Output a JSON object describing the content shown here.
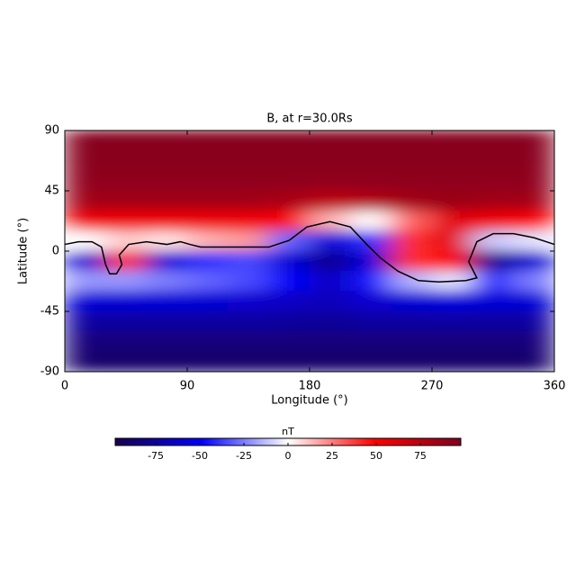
{
  "chart_data": {
    "type": "heatmap",
    "title": "B, at r=30.0Rs",
    "x_label": "Longitude (°)",
    "y_label": "Latitude (°)",
    "xlim": [
      0,
      360
    ],
    "ylim": [
      -90,
      90
    ],
    "xticks": [
      0,
      90,
      180,
      270,
      360
    ],
    "yticks": [
      -90,
      -45,
      0,
      45,
      90
    ],
    "x": [
      15,
      45,
      75,
      105,
      135,
      165,
      195,
      225,
      255,
      285,
      315,
      345
    ],
    "y": [
      82.5,
      67.5,
      52.5,
      37.5,
      22.5,
      7.5,
      -7.5,
      -22.5,
      -37.5,
      -52.5,
      -67.5,
      -82.5
    ],
    "z": [
      [
        95,
        95,
        95,
        95,
        95,
        95,
        95,
        95,
        95,
        95,
        95,
        95
      ],
      [
        94,
        94,
        94,
        94,
        94,
        94,
        94,
        94,
        94,
        94,
        94,
        94
      ],
      [
        92,
        92,
        92,
        92,
        92,
        92,
        92,
        92,
        92,
        92,
        92,
        92
      ],
      [
        85,
        85,
        85,
        85,
        85,
        82,
        75,
        78,
        85,
        88,
        85,
        85
      ],
      [
        55,
        55,
        55,
        55,
        55,
        50,
        15,
        0,
        30,
        60,
        55,
        50
      ],
      [
        0,
        10,
        5,
        15,
        20,
        -30,
        -60,
        -40,
        40,
        60,
        -10,
        -5
      ],
      [
        -60,
        40,
        -60,
        -40,
        -35,
        -60,
        -80,
        -60,
        40,
        50,
        -80,
        -60
      ],
      [
        -20,
        -20,
        -25,
        -30,
        -35,
        -50,
        -65,
        -45,
        -15,
        -5,
        -40,
        -25
      ],
      [
        -60,
        -60,
        -60,
        -60,
        -62,
        -65,
        -68,
        -62,
        -60,
        -58,
        -60,
        -60
      ],
      [
        -75,
        -75,
        -75,
        -75,
        -75,
        -76,
        -77,
        -75,
        -75,
        -75,
        -75,
        -75
      ],
      [
        -85,
        -85,
        -85,
        -85,
        -85,
        -85,
        -85,
        -85,
        -85,
        -85,
        -85,
        -85
      ],
      [
        -90,
        -90,
        -90,
        -90,
        -90,
        -90,
        -90,
        -90,
        -90,
        -90,
        -90,
        -90
      ]
    ],
    "colormap": [
      "#1a004d",
      "#0000ff",
      "#ffffff",
      "#ff0000",
      "#7f0020"
    ],
    "clim": [
      -98,
      98
    ],
    "colorbar_label": "nT",
    "colorbar_ticks": [
      -75,
      -50,
      -25,
      0,
      25,
      50,
      75
    ],
    "contour": {
      "color": "#000000",
      "x": [
        0,
        10,
        20,
        27,
        30,
        33,
        38,
        42,
        40,
        47,
        60,
        75,
        85,
        92,
        100,
        120,
        150,
        165,
        178,
        195,
        210,
        222,
        232,
        245,
        260,
        275,
        295,
        303,
        297,
        303,
        315,
        330,
        345,
        360
      ],
      "y": [
        5,
        7,
        7,
        3,
        -10,
        -17,
        -17,
        -10,
        -3,
        5,
        7,
        5,
        7,
        5,
        3,
        3,
        3,
        8,
        18,
        22,
        18,
        5,
        -5,
        -15,
        -22,
        -23,
        -22,
        -20,
        -8,
        7,
        13,
        13,
        10,
        5
      ]
    }
  }
}
